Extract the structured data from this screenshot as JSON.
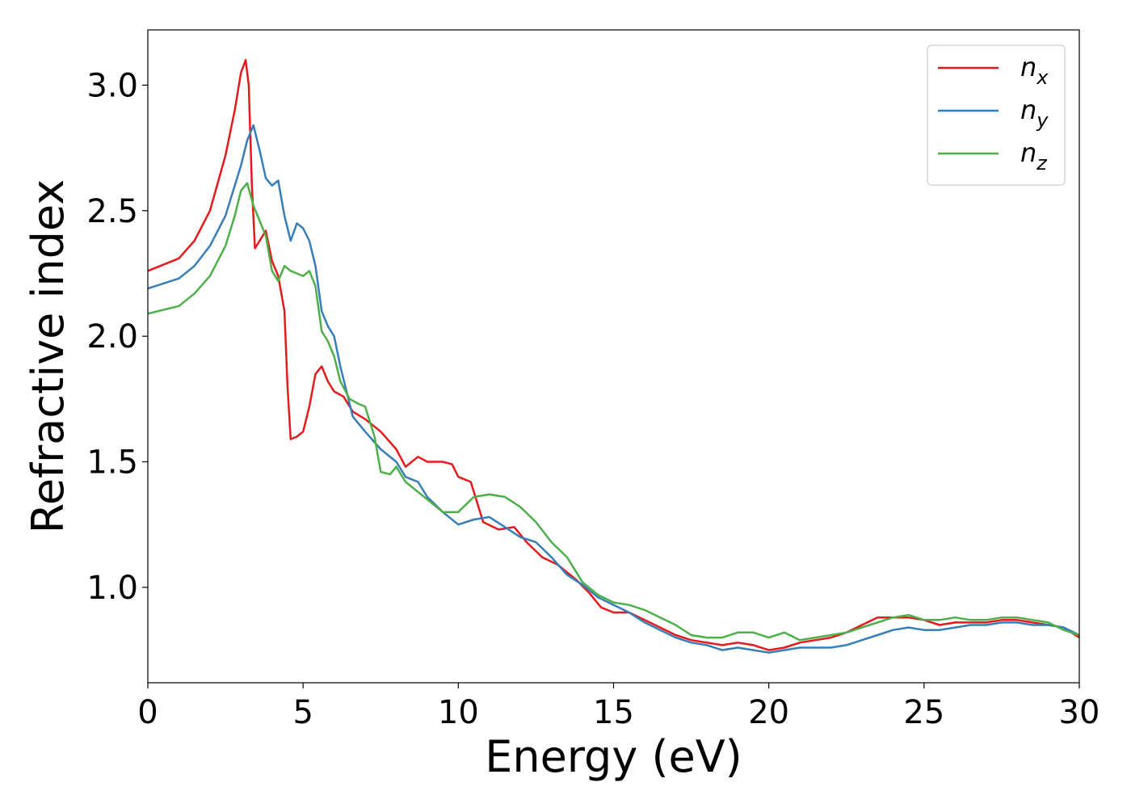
{
  "chart_data": {
    "type": "line",
    "title": "",
    "xlabel": "Energy (eV)",
    "ylabel": "Refractive index",
    "xlim": [
      0,
      30
    ],
    "ylim": [
      0.62,
      3.22
    ],
    "xticks": [
      0,
      5,
      10,
      15,
      20,
      25,
      30
    ],
    "yticks": [
      1.0,
      1.5,
      2.0,
      2.5,
      3.0
    ],
    "xtick_labels": [
      "0",
      "5",
      "10",
      "15",
      "20",
      "25",
      "30"
    ],
    "ytick_labels": [
      "1.0",
      "1.5",
      "2.0",
      "2.5",
      "3.0"
    ],
    "grid": false,
    "legend_position": "top-right",
    "series": [
      {
        "name": "n",
        "subscript": "x",
        "color": "#e41a1c",
        "points": [
          [
            0,
            2.26
          ],
          [
            1,
            2.31
          ],
          [
            1.5,
            2.38
          ],
          [
            2,
            2.5
          ],
          [
            2.5,
            2.72
          ],
          [
            2.8,
            2.9
          ],
          [
            3.0,
            3.05
          ],
          [
            3.15,
            3.1
          ],
          [
            3.25,
            3.0
          ],
          [
            3.35,
            2.6
          ],
          [
            3.45,
            2.35
          ],
          [
            3.6,
            2.38
          ],
          [
            3.8,
            2.42
          ],
          [
            4.0,
            2.3
          ],
          [
            4.2,
            2.24
          ],
          [
            4.4,
            2.1
          ],
          [
            4.5,
            1.8
          ],
          [
            4.6,
            1.59
          ],
          [
            4.8,
            1.6
          ],
          [
            5.0,
            1.62
          ],
          [
            5.2,
            1.72
          ],
          [
            5.4,
            1.85
          ],
          [
            5.6,
            1.88
          ],
          [
            5.8,
            1.82
          ],
          [
            6.0,
            1.78
          ],
          [
            6.3,
            1.76
          ],
          [
            6.6,
            1.7
          ],
          [
            7.0,
            1.67
          ],
          [
            7.5,
            1.62
          ],
          [
            8.0,
            1.55
          ],
          [
            8.3,
            1.48
          ],
          [
            8.7,
            1.52
          ],
          [
            9.0,
            1.5
          ],
          [
            9.5,
            1.5
          ],
          [
            9.8,
            1.49
          ],
          [
            10.0,
            1.44
          ],
          [
            10.4,
            1.42
          ],
          [
            10.8,
            1.26
          ],
          [
            11.3,
            1.23
          ],
          [
            11.8,
            1.24
          ],
          [
            12.2,
            1.18
          ],
          [
            12.7,
            1.12
          ],
          [
            13.2,
            1.09
          ],
          [
            13.8,
            1.03
          ],
          [
            14.2,
            0.98
          ],
          [
            14.6,
            0.92
          ],
          [
            15.0,
            0.9
          ],
          [
            15.5,
            0.9
          ],
          [
            16.0,
            0.87
          ],
          [
            16.5,
            0.84
          ],
          [
            17.0,
            0.81
          ],
          [
            17.5,
            0.79
          ],
          [
            18.0,
            0.78
          ],
          [
            18.5,
            0.77
          ],
          [
            19.0,
            0.78
          ],
          [
            19.5,
            0.77
          ],
          [
            20.0,
            0.75
          ],
          [
            20.5,
            0.76
          ],
          [
            21.0,
            0.78
          ],
          [
            21.5,
            0.79
          ],
          [
            22.0,
            0.8
          ],
          [
            22.5,
            0.82
          ],
          [
            23.0,
            0.85
          ],
          [
            23.5,
            0.88
          ],
          [
            24.0,
            0.88
          ],
          [
            24.5,
            0.88
          ],
          [
            25.0,
            0.87
          ],
          [
            25.5,
            0.85
          ],
          [
            26.0,
            0.86
          ],
          [
            26.5,
            0.86
          ],
          [
            27.0,
            0.86
          ],
          [
            27.5,
            0.87
          ],
          [
            28.0,
            0.87
          ],
          [
            28.5,
            0.86
          ],
          [
            29.0,
            0.85
          ],
          [
            29.5,
            0.84
          ],
          [
            30.0,
            0.8
          ]
        ]
      },
      {
        "name": "n",
        "subscript": "y",
        "color": "#377eb8",
        "points": [
          [
            0,
            2.19
          ],
          [
            1,
            2.23
          ],
          [
            1.5,
            2.28
          ],
          [
            2,
            2.36
          ],
          [
            2.5,
            2.48
          ],
          [
            2.8,
            2.6
          ],
          [
            3.0,
            2.68
          ],
          [
            3.2,
            2.78
          ],
          [
            3.4,
            2.84
          ],
          [
            3.6,
            2.74
          ],
          [
            3.8,
            2.63
          ],
          [
            4.0,
            2.6
          ],
          [
            4.2,
            2.62
          ],
          [
            4.4,
            2.48
          ],
          [
            4.6,
            2.38
          ],
          [
            4.8,
            2.45
          ],
          [
            5.0,
            2.43
          ],
          [
            5.2,
            2.38
          ],
          [
            5.4,
            2.28
          ],
          [
            5.6,
            2.1
          ],
          [
            5.8,
            2.04
          ],
          [
            6.0,
            2.0
          ],
          [
            6.2,
            1.88
          ],
          [
            6.4,
            1.78
          ],
          [
            6.6,
            1.68
          ],
          [
            7.0,
            1.62
          ],
          [
            7.5,
            1.55
          ],
          [
            8.0,
            1.5
          ],
          [
            8.3,
            1.44
          ],
          [
            8.7,
            1.42
          ],
          [
            9.0,
            1.36
          ],
          [
            9.5,
            1.3
          ],
          [
            10.0,
            1.25
          ],
          [
            10.5,
            1.27
          ],
          [
            11.0,
            1.28
          ],
          [
            11.5,
            1.24
          ],
          [
            12.0,
            1.2
          ],
          [
            12.5,
            1.18
          ],
          [
            13.0,
            1.12
          ],
          [
            13.5,
            1.05
          ],
          [
            14.0,
            1.01
          ],
          [
            14.5,
            0.96
          ],
          [
            15.0,
            0.93
          ],
          [
            15.5,
            0.9
          ],
          [
            16.0,
            0.86
          ],
          [
            16.5,
            0.83
          ],
          [
            17.0,
            0.8
          ],
          [
            17.5,
            0.78
          ],
          [
            18.0,
            0.77
          ],
          [
            18.5,
            0.75
          ],
          [
            19.0,
            0.76
          ],
          [
            19.5,
            0.75
          ],
          [
            20.0,
            0.74
          ],
          [
            20.5,
            0.75
          ],
          [
            21.0,
            0.76
          ],
          [
            21.5,
            0.76
          ],
          [
            22.0,
            0.76
          ],
          [
            22.5,
            0.77
          ],
          [
            23.0,
            0.79
          ],
          [
            23.5,
            0.81
          ],
          [
            24.0,
            0.83
          ],
          [
            24.5,
            0.84
          ],
          [
            25.0,
            0.83
          ],
          [
            25.5,
            0.83
          ],
          [
            26.0,
            0.84
          ],
          [
            26.5,
            0.85
          ],
          [
            27.0,
            0.85
          ],
          [
            27.5,
            0.86
          ],
          [
            28.0,
            0.86
          ],
          [
            28.5,
            0.85
          ],
          [
            29.0,
            0.85
          ],
          [
            29.5,
            0.84
          ],
          [
            30.0,
            0.81
          ]
        ]
      },
      {
        "name": "n",
        "subscript": "z",
        "color": "#4daf4a",
        "points": [
          [
            0,
            2.09
          ],
          [
            1,
            2.12
          ],
          [
            1.5,
            2.17
          ],
          [
            2,
            2.24
          ],
          [
            2.5,
            2.36
          ],
          [
            2.8,
            2.48
          ],
          [
            3.0,
            2.58
          ],
          [
            3.2,
            2.61
          ],
          [
            3.4,
            2.52
          ],
          [
            3.6,
            2.46
          ],
          [
            3.8,
            2.4
          ],
          [
            4.0,
            2.26
          ],
          [
            4.2,
            2.22
          ],
          [
            4.4,
            2.28
          ],
          [
            4.6,
            2.26
          ],
          [
            4.8,
            2.25
          ],
          [
            5.0,
            2.24
          ],
          [
            5.2,
            2.26
          ],
          [
            5.4,
            2.2
          ],
          [
            5.6,
            2.02
          ],
          [
            5.8,
            1.98
          ],
          [
            6.0,
            1.92
          ],
          [
            6.2,
            1.82
          ],
          [
            6.5,
            1.75
          ],
          [
            6.8,
            1.73
          ],
          [
            7.0,
            1.72
          ],
          [
            7.3,
            1.6
          ],
          [
            7.5,
            1.46
          ],
          [
            7.8,
            1.45
          ],
          [
            8.0,
            1.48
          ],
          [
            8.3,
            1.42
          ],
          [
            8.7,
            1.38
          ],
          [
            9.0,
            1.35
          ],
          [
            9.5,
            1.3
          ],
          [
            10.0,
            1.3
          ],
          [
            10.5,
            1.36
          ],
          [
            11.0,
            1.37
          ],
          [
            11.5,
            1.36
          ],
          [
            12.0,
            1.32
          ],
          [
            12.5,
            1.26
          ],
          [
            13.0,
            1.18
          ],
          [
            13.5,
            1.12
          ],
          [
            14.0,
            1.02
          ],
          [
            14.5,
            0.97
          ],
          [
            15.0,
            0.94
          ],
          [
            15.5,
            0.93
          ],
          [
            16.0,
            0.91
          ],
          [
            16.5,
            0.88
          ],
          [
            17.0,
            0.85
          ],
          [
            17.5,
            0.81
          ],
          [
            18.0,
            0.8
          ],
          [
            18.5,
            0.8
          ],
          [
            19.0,
            0.82
          ],
          [
            19.5,
            0.82
          ],
          [
            20.0,
            0.8
          ],
          [
            20.5,
            0.82
          ],
          [
            21.0,
            0.79
          ],
          [
            21.5,
            0.8
          ],
          [
            22.0,
            0.81
          ],
          [
            22.5,
            0.82
          ],
          [
            23.0,
            0.84
          ],
          [
            23.5,
            0.86
          ],
          [
            24.0,
            0.88
          ],
          [
            24.5,
            0.89
          ],
          [
            25.0,
            0.87
          ],
          [
            25.5,
            0.87
          ],
          [
            26.0,
            0.88
          ],
          [
            26.5,
            0.87
          ],
          [
            27.0,
            0.87
          ],
          [
            27.5,
            0.88
          ],
          [
            28.0,
            0.88
          ],
          [
            28.5,
            0.87
          ],
          [
            29.0,
            0.86
          ],
          [
            29.5,
            0.83
          ],
          [
            30.0,
            0.81
          ]
        ]
      }
    ]
  }
}
